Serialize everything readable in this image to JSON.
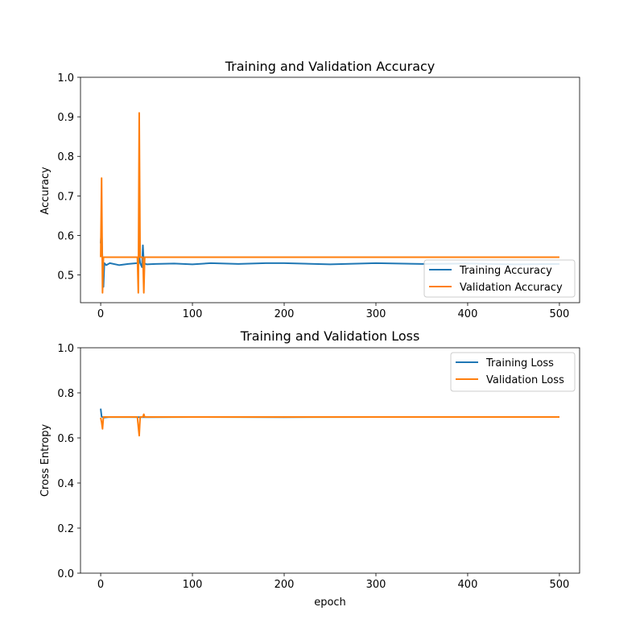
{
  "colors": {
    "training": "#1f77b4",
    "validation": "#ff7f0e",
    "axes": "#000000",
    "background": "#ffffff"
  },
  "chart_data": [
    {
      "type": "line",
      "title": "Training and Validation Accuracy",
      "xlabel": "",
      "ylabel": "Accuracy",
      "xlim": [
        -22,
        522
      ],
      "ylim": [
        0.43,
        1.0
      ],
      "xticks": [
        0,
        100,
        200,
        300,
        400,
        500
      ],
      "yticks": [
        0.5,
        0.6,
        0.7,
        0.8,
        0.9,
        1.0
      ],
      "grid": false,
      "legend_position": "lower-right",
      "series": [
        {
          "name": "Training Accuracy",
          "color": "#1f77b4",
          "points": [
            [
              0,
              0.58
            ],
            [
              1,
              0.62
            ],
            [
              2,
              0.53
            ],
            [
              3,
              0.47
            ],
            [
              4,
              0.53
            ],
            [
              6,
              0.525
            ],
            [
              10,
              0.53
            ],
            [
              20,
              0.525
            ],
            [
              30,
              0.528
            ],
            [
              40,
              0.53
            ],
            [
              42,
              0.55
            ],
            [
              43,
              0.53
            ],
            [
              45,
              0.52
            ],
            [
              46,
              0.575
            ],
            [
              47,
              0.53
            ],
            [
              50,
              0.527
            ],
            [
              60,
              0.528
            ],
            [
              80,
              0.529
            ],
            [
              100,
              0.527
            ],
            [
              120,
              0.53
            ],
            [
              150,
              0.528
            ],
            [
              180,
              0.53
            ],
            [
              200,
              0.53
            ],
            [
              250,
              0.527
            ],
            [
              300,
              0.53
            ],
            [
              350,
              0.528
            ],
            [
              400,
              0.529
            ],
            [
              450,
              0.527
            ],
            [
              500,
              0.528
            ]
          ]
        },
        {
          "name": "Validation Accuracy",
          "color": "#ff7f0e",
          "points": [
            [
              0,
              0.545
            ],
            [
              1,
              0.745
            ],
            [
              2,
              0.455
            ],
            [
              3,
              0.545
            ],
            [
              40,
              0.545
            ],
            [
              41,
              0.455
            ],
            [
              42,
              0.91
            ],
            [
              43,
              0.545
            ],
            [
              46,
              0.545
            ],
            [
              47,
              0.455
            ],
            [
              48,
              0.545
            ],
            [
              500,
              0.545
            ]
          ]
        }
      ]
    },
    {
      "type": "line",
      "title": "Training and Validation Loss",
      "xlabel": "epoch",
      "ylabel": "Cross Entropy",
      "xlim": [
        -22,
        522
      ],
      "ylim": [
        0.0,
        1.0
      ],
      "xticks": [
        0,
        100,
        200,
        300,
        400,
        500
      ],
      "yticks": [
        0.0,
        0.2,
        0.4,
        0.6,
        0.8,
        1.0
      ],
      "grid": false,
      "legend_position": "upper-right",
      "series": [
        {
          "name": "Training Loss",
          "color": "#1f77b4",
          "points": [
            [
              0,
              0.73
            ],
            [
              1,
              0.695
            ],
            [
              3,
              0.69
            ],
            [
              10,
              0.693
            ],
            [
              50,
              0.692
            ],
            [
              100,
              0.693
            ],
            [
              200,
              0.692
            ],
            [
              300,
              0.693
            ],
            [
              400,
              0.693
            ],
            [
              500,
              0.693
            ]
          ]
        },
        {
          "name": "Validation Loss",
          "color": "#ff7f0e",
          "points": [
            [
              0,
              0.69
            ],
            [
              1,
              0.67
            ],
            [
              2,
              0.64
            ],
            [
              3,
              0.693
            ],
            [
              40,
              0.693
            ],
            [
              41,
              0.65
            ],
            [
              42,
              0.61
            ],
            [
              43,
              0.693
            ],
            [
              46,
              0.693
            ],
            [
              47,
              0.705
            ],
            [
              48,
              0.693
            ],
            [
              500,
              0.693
            ]
          ]
        }
      ]
    }
  ]
}
